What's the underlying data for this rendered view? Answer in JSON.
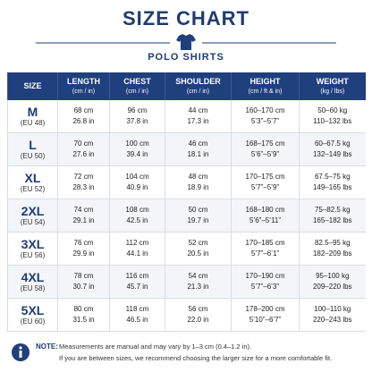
{
  "header": {
    "title": "SIZE CHART",
    "subtitle": "POLO SHIRTS"
  },
  "table": {
    "columns": [
      {
        "title": "SIZE",
        "unit": null
      },
      {
        "title": "LENGTH",
        "unit": "(cm / in)"
      },
      {
        "title": "CHEST",
        "unit": "(cm / in)"
      },
      {
        "title": "SHOULDER",
        "unit": "(cm / in)"
      },
      {
        "title": "HEIGHT",
        "unit": "(cm / ft & in)"
      },
      {
        "title": "WEIGHT",
        "unit": "(kg / lbs)"
      }
    ],
    "rows": [
      {
        "size": "M",
        "eu": "(EU 48)",
        "cells": [
          [
            "68 cm",
            "26.8 in"
          ],
          [
            "96 cm",
            "37.8 in"
          ],
          [
            "44 cm",
            "17.3 in"
          ],
          [
            "160–170 cm",
            "5’3”–5’7”"
          ],
          [
            "50–60 kg",
            "110–132 lbs"
          ]
        ]
      },
      {
        "size": "L",
        "eu": "(EU 50)",
        "cells": [
          [
            "70 cm",
            "27.6 in"
          ],
          [
            "100 cm",
            "39.4 in"
          ],
          [
            "46 cm",
            "18.1 in"
          ],
          [
            "168–175 cm",
            "5’6”–5’9”"
          ],
          [
            "60–67.5 kg",
            "132–149 lbs"
          ]
        ]
      },
      {
        "size": "XL",
        "eu": "(EU 52)",
        "cells": [
          [
            "72 cm",
            "28.3 in"
          ],
          [
            "104 cm",
            "40.9 in"
          ],
          [
            "48 cm",
            "18.9 in"
          ],
          [
            "170–175 cm",
            "5’7”–5’9”"
          ],
          [
            "67.5–75 kg",
            "149–165 lbs"
          ]
        ]
      },
      {
        "size": "2XL",
        "eu": "(EU 54)",
        "cells": [
          [
            "74 cm",
            "29.1 in"
          ],
          [
            "108 cm",
            "42.5 in"
          ],
          [
            "50 cm",
            "19.7 in"
          ],
          [
            "168–180 cm",
            "5’6”–5’11”"
          ],
          [
            "75–82.5 kg",
            "165–182 lbs"
          ]
        ]
      },
      {
        "size": "3XL",
        "eu": "(EU 56)",
        "cells": [
          [
            "76 cm",
            "29.9 in"
          ],
          [
            "112 cm",
            "44.1 in"
          ],
          [
            "52 cm",
            "20.5 in"
          ],
          [
            "170–185 cm",
            "5’7”–6’1”"
          ],
          [
            "82.5–95 kg",
            "182–209 lbs"
          ]
        ]
      },
      {
        "size": "4XL",
        "eu": "(EU 58)",
        "cells": [
          [
            "78 cm",
            "30.7 in"
          ],
          [
            "116 cm",
            "45.7 in"
          ],
          [
            "54 cm",
            "21.3 in"
          ],
          [
            "170–190 cm",
            "5’7”–6’3”"
          ],
          [
            "95–100 kg",
            "209–220 lbs"
          ]
        ]
      },
      {
        "size": "5XL",
        "eu": "(EU 60)",
        "cells": [
          [
            "80 cm",
            "31.5 in"
          ],
          [
            "118 cm",
            "46.5 in"
          ],
          [
            "56 cm",
            "22.0 in"
          ],
          [
            "178–200 cm",
            "5’10”–6’7”"
          ],
          [
            "100–110 kg",
            "220–243 lbs"
          ]
        ]
      }
    ]
  },
  "note": {
    "label": "NOTE:",
    "lines": [
      "Measurements are manual and may vary by 1–3 cm (0.4–1.2 in).",
      "If you are between sizes, we recommend choosing the larger size for a more comfortable fit."
    ]
  }
}
